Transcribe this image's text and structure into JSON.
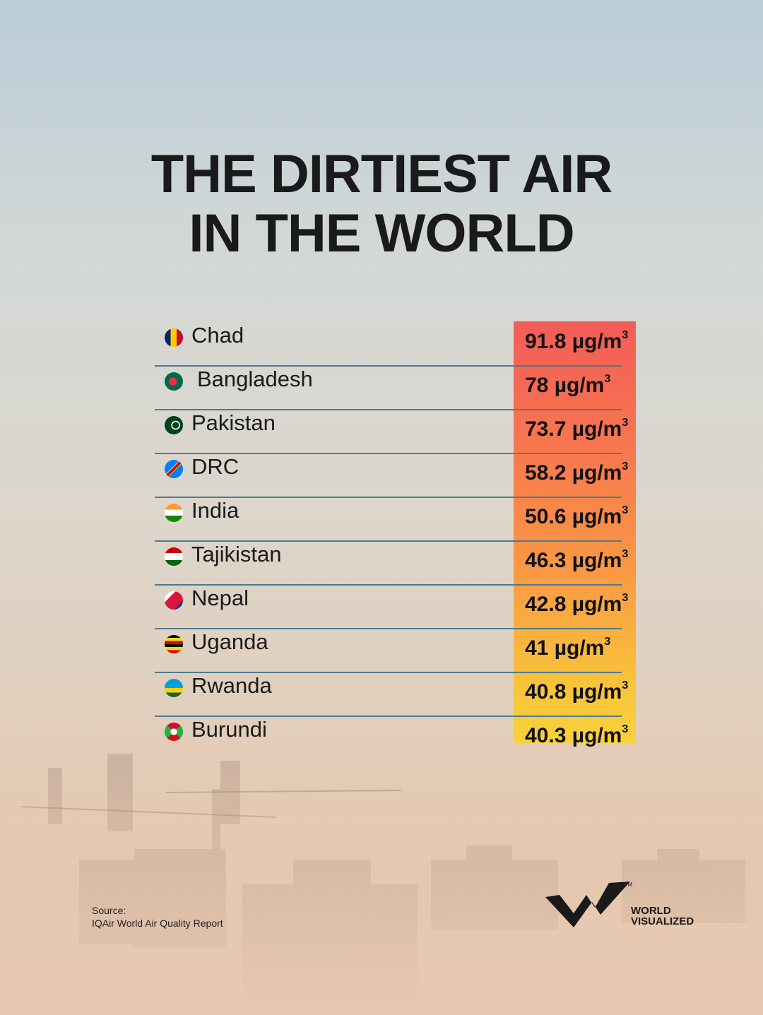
{
  "title_lines": [
    "THE DIRTIEST AIR",
    "IN THE WORLD"
  ],
  "chart_data": {
    "type": "table",
    "title": "THE DIRTIEST AIR IN THE WORLD",
    "unit": "µg/m",
    "unit_superscript": "3",
    "categories": [
      "Chad",
      "Bangladesh",
      "Pakistan",
      "DRC",
      "India",
      "Tajikistan",
      "Nepal",
      "Uganda",
      "Rwanda",
      "Burundi"
    ],
    "values": [
      91.8,
      78,
      73.7,
      58.2,
      50.6,
      46.3,
      42.8,
      41,
      40.8,
      40.3
    ],
    "value_labels": [
      "91.8 µg/m",
      "78 µg/m",
      "73.7 µg/m",
      "58.2 µg/m",
      "50.6 µg/m",
      "46.3 µg/m",
      "42.8 µg/m",
      "41 µg/m",
      "40.8 µg/m",
      "40.3 µg/m"
    ],
    "value_column_gradient": [
      "#f35c58",
      "#f8d23a"
    ]
  },
  "source": {
    "label": "Source:",
    "text": "IQAir World Air Quality Report"
  },
  "brand": {
    "line1": "WORLD",
    "line2": "VISUALIZED",
    "tm": "TM"
  }
}
